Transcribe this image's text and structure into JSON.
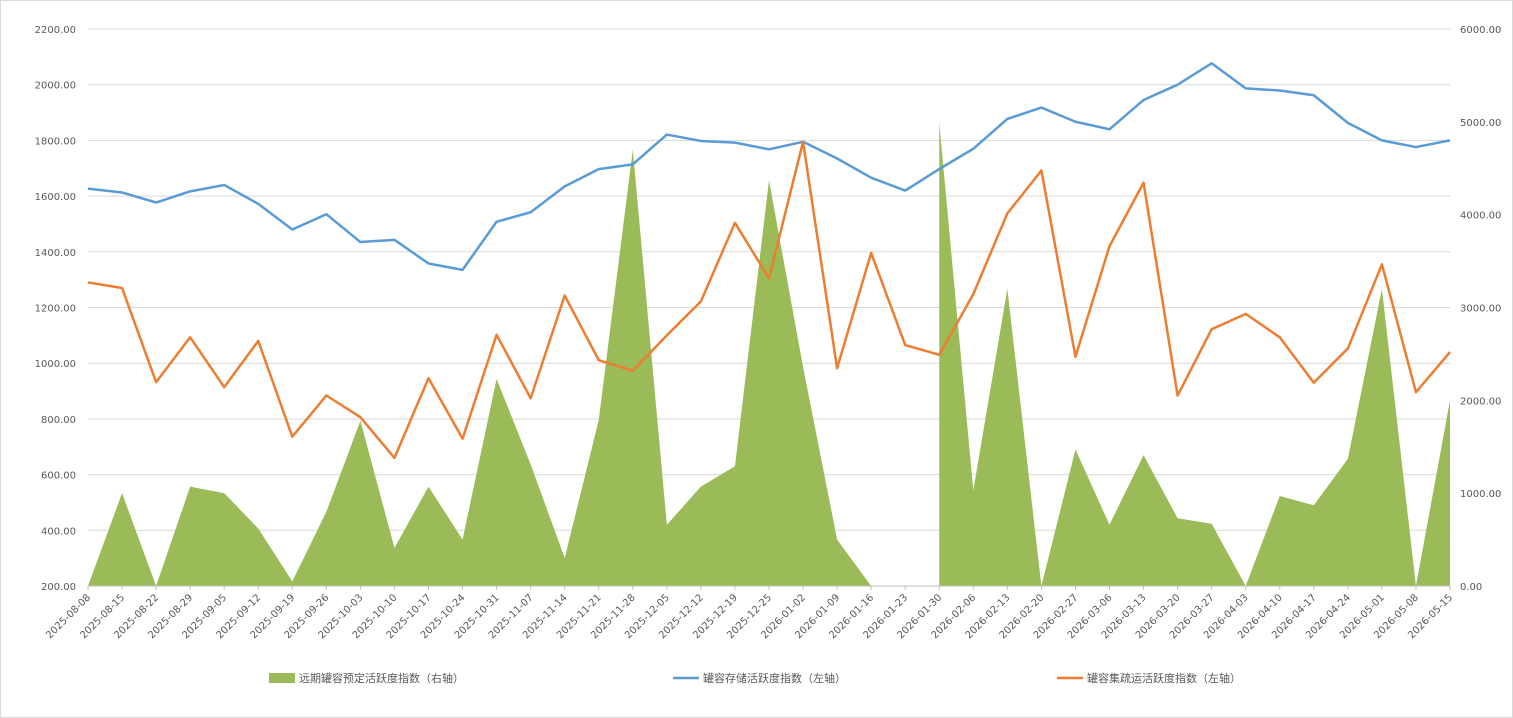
{
  "chart_data": {
    "type": "line",
    "title": "",
    "x": [
      "2025-08-08",
      "2025-08-15",
      "2025-08-22",
      "2025-08-29",
      "2025-09-05",
      "2025-09-12",
      "2025-09-19",
      "2025-09-26",
      "2025-10-03",
      "2025-10-10",
      "2025-10-17",
      "2025-10-24",
      "2025-10-31",
      "2025-11-07",
      "2025-11-14",
      "2025-11-21",
      "2025-11-28",
      "2025-12-05",
      "2025-12-12",
      "2025-12-19",
      "2025-12-25",
      "2026-01-02",
      "2026-01-09",
      "2026-01-16",
      "2026-01-23",
      "2026-01-30",
      "2026-02-06",
      "2026-02-13",
      "2026-02-20",
      "2026-02-27",
      "2026-03-06",
      "2026-03-13",
      "2026-03-20",
      "2026-03-27",
      "2026-04-03",
      "2026-04-10",
      "2026-04-17",
      "2026-04-24",
      "2026-05-01",
      "2026-05-08",
      "2026-05-15"
    ],
    "y_left": {
      "min": 200,
      "max": 2200,
      "step": 200,
      "tick_labels": [
        "200.00",
        "400.00",
        "600.00",
        "800.00",
        "1000.00",
        "1200.00",
        "1400.00",
        "1600.00",
        "1800.00",
        "2000.00",
        "2200.00"
      ]
    },
    "y_right": {
      "min": 0,
      "max": 6000,
      "step": 1000,
      "tick_labels": [
        "0.00",
        "1000.00",
        "2000.00",
        "3000.00",
        "4000.00",
        "5000.00",
        "6000.00"
      ]
    },
    "grid": "horizontal",
    "legend_position": "bottom",
    "series": [
      {
        "name": "远期罐容预定活跃度指数（右轴）",
        "type": "area",
        "axis": "right",
        "color": "#9bbb59",
        "values": [
          0,
          1000,
          0,
          1070,
          1000,
          620,
          50,
          800,
          1780,
          410,
          1070,
          500,
          2230,
          1310,
          300,
          1790,
          4700,
          660,
          1070,
          1290,
          4370,
          2360,
          500,
          0,
          null,
          4990,
          1030,
          3200,
          0,
          1470,
          660,
          1410,
          730,
          670,
          0,
          970,
          870,
          1370,
          3200,
          0,
          2000
        ]
      },
      {
        "name": "罐容存储活跃度指数（左轴）",
        "type": "line",
        "axis": "left",
        "color": "#5b9bd5",
        "values": [
          1627,
          1613,
          1577,
          1617,
          1640,
          1572,
          1480,
          1535,
          1435,
          1443,
          1358,
          1335,
          1508,
          1542,
          1635,
          1697,
          1714,
          1821,
          1798,
          1792,
          1768,
          1795,
          1735,
          1666,
          1620,
          1697,
          1770,
          1877,
          1918,
          1867,
          1840,
          1945,
          2000,
          2077,
          1987,
          1979,
          1962,
          1863,
          1800,
          1776,
          1800
        ]
      },
      {
        "name": "罐容集疏运活跃度指数（左轴）",
        "type": "line",
        "axis": "left",
        "color": "#ed7d31",
        "values": [
          1290,
          1270,
          932,
          1093,
          914,
          1080,
          736,
          884,
          806,
          660,
          946,
          729,
          1102,
          874,
          1243,
          1011,
          973,
          1100,
          1222,
          1504,
          1305,
          1795,
          982,
          1396,
          1065,
          1030,
          1248,
          1538,
          1692,
          1023,
          1420,
          1648,
          884,
          1122,
          1177,
          1093,
          930,
          1053,
          1355,
          896,
          1040
        ]
      }
    ]
  }
}
